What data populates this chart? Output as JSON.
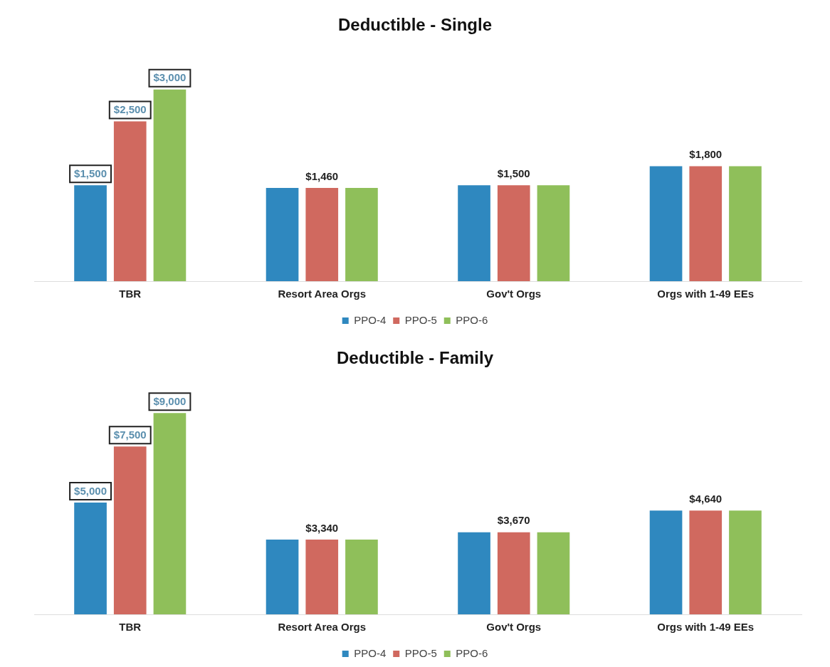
{
  "chart_data": [
    {
      "type": "bar",
      "title": "Deductible - Single",
      "categories": [
        "TBR",
        "Resort Area Orgs",
        "Gov't Orgs",
        "Orgs with 1-49 EEs"
      ],
      "series": [
        {
          "name": "PPO-4",
          "color": "#2f88bf",
          "values": [
            1500,
            1460,
            1500,
            1800
          ],
          "value_labels": [
            "$1,500",
            null,
            null,
            null
          ]
        },
        {
          "name": "PPO-5",
          "color": "#d0695f",
          "values": [
            2500,
            1460,
            1500,
            1800
          ],
          "value_labels": [
            "$2,500",
            "$1,460",
            "$1,500",
            "$1,800"
          ]
        },
        {
          "name": "PPO-6",
          "color": "#8fbf5a",
          "values": [
            3000,
            1460,
            1500,
            1800
          ],
          "value_labels": [
            "$3,000",
            null,
            null,
            null
          ]
        }
      ],
      "legend": "bottom",
      "grid": false,
      "tick_labels": "x"
    },
    {
      "type": "bar",
      "title": "Deductible - Family",
      "categories": [
        "TBR",
        "Resort Area Orgs",
        "Gov't Orgs",
        "Orgs with 1-49 EEs"
      ],
      "series": [
        {
          "name": "PPO-4",
          "color": "#2f88bf",
          "values": [
            5000,
            3340,
            3670,
            4640
          ],
          "value_labels": [
            "$5,000",
            null,
            null,
            null
          ]
        },
        {
          "name": "PPO-5",
          "color": "#d0695f",
          "values": [
            7500,
            3340,
            3670,
            4640
          ],
          "value_labels": [
            "$7,500",
            "$3,340",
            "$3,670",
            "$4,640"
          ]
        },
        {
          "name": "PPO-6",
          "color": "#8fbf5a",
          "values": [
            9000,
            3340,
            3670,
            4640
          ],
          "value_labels": [
            "$9,000",
            null,
            null,
            null
          ]
        }
      ],
      "legend": "bottom",
      "grid": false,
      "tick_labels": "x"
    }
  ]
}
